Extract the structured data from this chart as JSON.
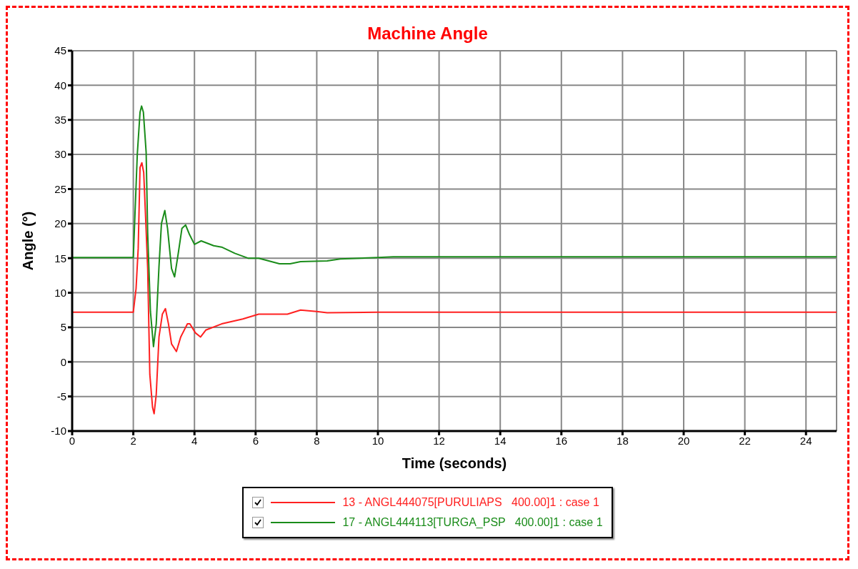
{
  "chart_data": {
    "type": "line",
    "title": "Machine Angle",
    "xlabel": "Time (seconds)",
    "ylabel": "Angle (°)",
    "xlim": [
      0,
      25
    ],
    "xticks": [
      0,
      2,
      4,
      6,
      8,
      10,
      12,
      14,
      16,
      18,
      20,
      22,
      24
    ],
    "ylim": [
      -10,
      45
    ],
    "yticks": [
      -10,
      -5,
      0,
      5,
      10,
      15,
      20,
      25,
      30,
      35,
      40,
      45
    ],
    "grid": true,
    "legend": "bottom",
    "marker": "none",
    "line_style": "solid",
    "series": [
      {
        "name": "13 - ANGL444075[PURULIAPS   400.00]1 : case 1",
        "color": "#ff2020",
        "x": [
          0,
          2.0,
          2.09,
          2.16,
          2.22,
          2.28,
          2.34,
          2.41,
          2.47,
          2.54,
          2.63,
          2.68,
          2.75,
          2.84,
          2.95,
          3.05,
          3.15,
          3.25,
          3.41,
          3.55,
          3.77,
          3.85,
          4.03,
          4.2,
          4.37,
          4.89,
          5.58,
          6.1,
          7.04,
          7.47,
          7.99,
          8.34,
          10,
          25
        ],
        "values": [
          7.2,
          7.2,
          10.6,
          16.4,
          28.1,
          28.8,
          27.4,
          20.1,
          13.5,
          -1.8,
          -6.6,
          -7.5,
          -4.7,
          3.6,
          6.9,
          7.7,
          5.5,
          2.6,
          1.5,
          3.6,
          5.5,
          5.5,
          4.2,
          3.6,
          4.6,
          5.5,
          6.2,
          6.9,
          6.9,
          7.5,
          7.3,
          7.1,
          7.2,
          7.2
        ]
      },
      {
        "name": "17 - ANGL444113[TURGA_PSP   400.00]1 : case 1",
        "color": "#1a8c1a",
        "x": [
          0,
          2.0,
          2.13,
          2.22,
          2.27,
          2.33,
          2.42,
          2.47,
          2.56,
          2.66,
          2.75,
          2.84,
          2.92,
          3.03,
          3.12,
          3.25,
          3.35,
          3.47,
          3.59,
          3.71,
          3.84,
          4.0,
          4.22,
          4.63,
          4.89,
          5.32,
          5.75,
          6.1,
          6.78,
          7.13,
          7.47,
          8.34,
          8.77,
          10,
          10.5,
          25
        ],
        "values": [
          15.1,
          15.1,
          30,
          36.1,
          37.0,
          36.1,
          30.3,
          18.6,
          7.3,
          2.2,
          5.5,
          13.8,
          20,
          21.9,
          19.3,
          13.5,
          12.3,
          15.7,
          19.3,
          19.8,
          18.4,
          17.0,
          17.5,
          16.8,
          16.6,
          15.7,
          15.0,
          15.0,
          14.2,
          14.2,
          14.5,
          14.6,
          14.9,
          15.1,
          15.2,
          15.2
        ]
      }
    ]
  }
}
